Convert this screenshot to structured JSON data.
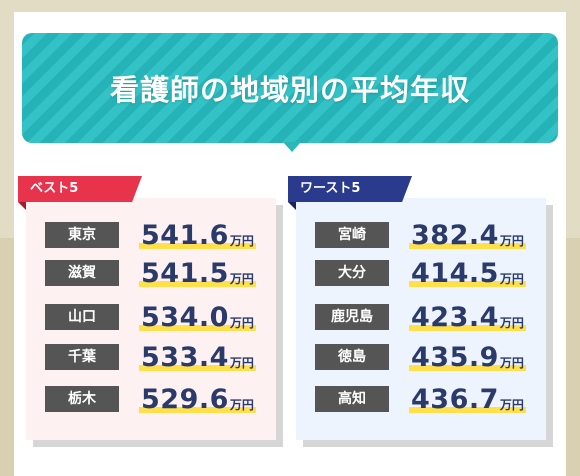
{
  "title": "看護師の地域別の平均年収",
  "colors": {
    "banner": "#2ab8bb",
    "best_tag": "#e8334d",
    "worst_tag": "#2a3a8c",
    "highlight": "#ffe04a",
    "label_bg": "#555555"
  },
  "best": {
    "label": "ベスト5",
    "rows": [
      {
        "pref": "東京",
        "value": "541.6",
        "unit": "万円"
      },
      {
        "pref": "滋賀",
        "value": "541.5",
        "unit": "万円"
      },
      {
        "pref": "山口",
        "value": "534.0",
        "unit": "万円"
      },
      {
        "pref": "千葉",
        "value": "533.4",
        "unit": "万円"
      },
      {
        "pref": "栃木",
        "value": "529.6",
        "unit": "万円"
      }
    ]
  },
  "worst": {
    "label": "ワースト5",
    "rows": [
      {
        "pref": "宮崎",
        "value": "382.4",
        "unit": "万円"
      },
      {
        "pref": "大分",
        "value": "414.5",
        "unit": "万円"
      },
      {
        "pref": "鹿児島",
        "value": "423.4",
        "unit": "万円"
      },
      {
        "pref": "徳島",
        "value": "435.9",
        "unit": "万円"
      },
      {
        "pref": "高知",
        "value": "436.7",
        "unit": "万円"
      }
    ]
  }
}
